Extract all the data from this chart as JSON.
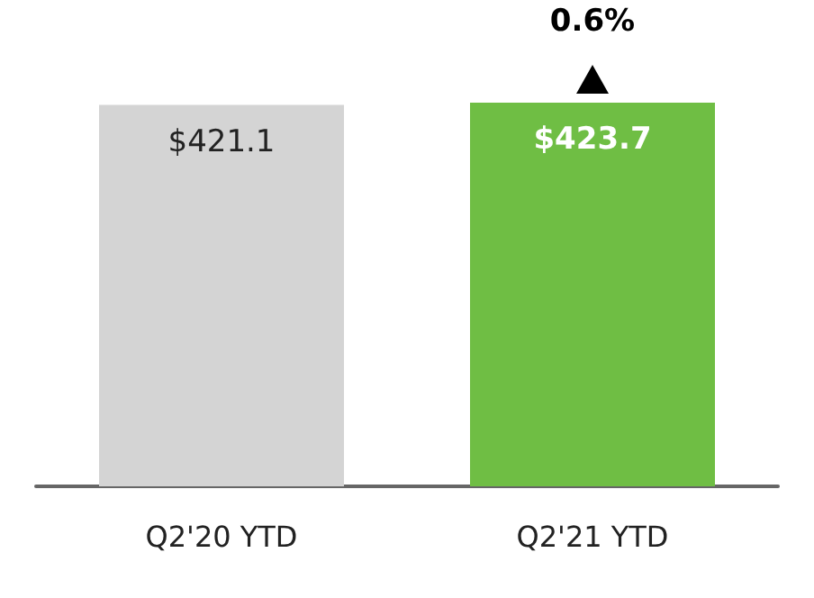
{
  "chart_data": {
    "type": "bar",
    "categories": [
      "Q2'20 YTD",
      "Q2'21 YTD"
    ],
    "values": [
      421.1,
      423.7
    ],
    "colors": [
      "#d4d4d4",
      "#6fbe44"
    ],
    "value_labels": [
      "$421.1",
      "$423.7"
    ],
    "annotations": [
      "0.6%"
    ]
  }
}
